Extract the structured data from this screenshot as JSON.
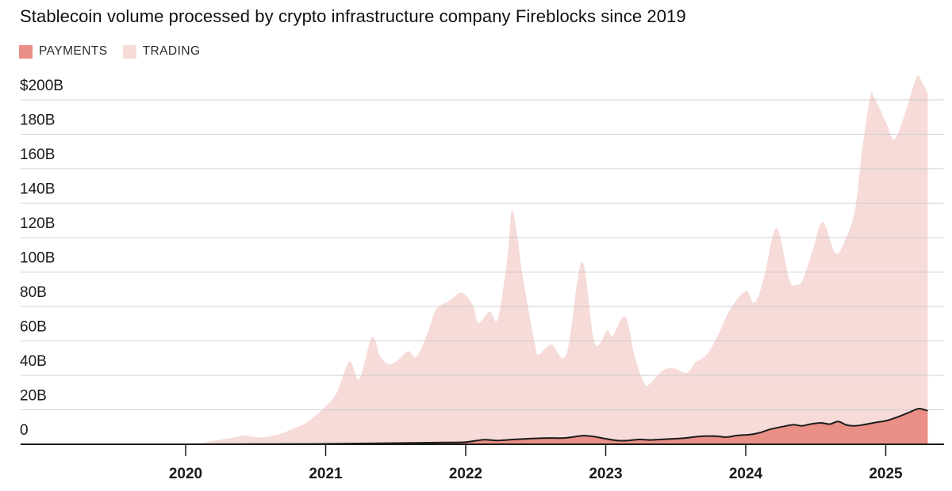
{
  "header": {
    "title": "Stablecoin volume processed by crypto infrastructure company Fireblocks since 2019"
  },
  "legend": {
    "items": [
      {
        "label": "PAYMENTS",
        "color": "#ea8f86"
      },
      {
        "label": "TRADING",
        "color": "#f6dbd9"
      }
    ]
  },
  "colors": {
    "background": "#ffffff",
    "trading_fill": "#f6dbd9",
    "payments_fill": "#ea8f86",
    "payments_line": "#1c1c1c",
    "gridline": "#c9c9c9",
    "axis": "#1a1a1a",
    "text": "#1a1a1a"
  },
  "chart_data": {
    "type": "area",
    "title": "Stablecoin volume processed by crypto infrastructure company Fireblocks since 2019",
    "unit": "billions USD",
    "xlabel": "",
    "ylabel": "",
    "ylim": [
      0,
      200
    ],
    "grid": true,
    "legend_position": "top-left",
    "x_ticks": [
      2020,
      2021,
      2022,
      2023,
      2024,
      2025
    ],
    "x_tick_labels": [
      "2020",
      "2021",
      "2022",
      "2023",
      "2024",
      "2025"
    ],
    "y_ticks": [
      0,
      20,
      40,
      60,
      80,
      100,
      120,
      140,
      160,
      180,
      200
    ],
    "y_tick_labels": [
      "0",
      "20B",
      "40B",
      "60B",
      "80B",
      "100B",
      "120B",
      "140B",
      "160B",
      "180B",
      "$200B"
    ],
    "series": [
      {
        "name": "TRADING",
        "points": [
          [
            2019.0,
            0
          ],
          [
            2019.52,
            0.2
          ],
          [
            2020.0,
            0.5
          ],
          [
            2020.12,
            1
          ],
          [
            2020.2,
            2
          ],
          [
            2020.29,
            3.2
          ],
          [
            2020.37,
            4.4
          ],
          [
            2020.43,
            5.1
          ],
          [
            2020.52,
            3.9
          ],
          [
            2020.6,
            4.6
          ],
          [
            2020.69,
            6.4
          ],
          [
            2020.77,
            9.2
          ],
          [
            2020.86,
            12.4
          ],
          [
            2020.94,
            17.5
          ],
          [
            2021.0,
            22
          ],
          [
            2021.08,
            30
          ],
          [
            2021.17,
            48
          ],
          [
            2021.24,
            38
          ],
          [
            2021.33,
            62
          ],
          [
            2021.39,
            51
          ],
          [
            2021.45,
            46.5
          ],
          [
            2021.51,
            48.5
          ],
          [
            2021.59,
            54
          ],
          [
            2021.65,
            51
          ],
          [
            2021.73,
            65
          ],
          [
            2021.79,
            78.5
          ],
          [
            2021.88,
            83
          ],
          [
            2021.97,
            88
          ],
          [
            2022.05,
            81
          ],
          [
            2022.09,
            70.5
          ],
          [
            2022.17,
            77
          ],
          [
            2022.23,
            73
          ],
          [
            2022.3,
            110
          ],
          [
            2022.33,
            136
          ],
          [
            2022.37,
            120
          ],
          [
            2022.41,
            96
          ],
          [
            2022.49,
            60
          ],
          [
            2022.52,
            52
          ],
          [
            2022.61,
            58
          ],
          [
            2022.72,
            52.5
          ],
          [
            2022.83,
            106
          ],
          [
            2022.92,
            59
          ],
          [
            2023.01,
            66
          ],
          [
            2023.05,
            63
          ],
          [
            2023.14,
            74
          ],
          [
            2023.21,
            50
          ],
          [
            2023.28,
            35
          ],
          [
            2023.32,
            35.5
          ],
          [
            2023.41,
            43
          ],
          [
            2023.49,
            44
          ],
          [
            2023.58,
            41.5
          ],
          [
            2023.64,
            47.5
          ],
          [
            2023.72,
            52
          ],
          [
            2023.8,
            63
          ],
          [
            2023.89,
            78.5
          ],
          [
            2024.0,
            89
          ],
          [
            2024.05,
            82.5
          ],
          [
            2024.09,
            86
          ],
          [
            2024.14,
            100
          ],
          [
            2024.22,
            125.5
          ],
          [
            2024.31,
            96
          ],
          [
            2024.36,
            92.5
          ],
          [
            2024.41,
            96
          ],
          [
            2024.48,
            113
          ],
          [
            2024.55,
            129
          ],
          [
            2024.64,
            111
          ],
          [
            2024.71,
            118.5
          ],
          [
            2024.78,
            136
          ],
          [
            2024.83,
            170
          ],
          [
            2024.89,
            202
          ],
          [
            2024.92,
            201
          ],
          [
            2025.0,
            187
          ],
          [
            2025.06,
            177
          ],
          [
            2025.13,
            190
          ],
          [
            2025.22,
            213
          ],
          [
            2025.26,
            210
          ],
          [
            2025.3,
            204
          ]
        ]
      },
      {
        "name": "PAYMENTS",
        "points": [
          [
            2020.0,
            0
          ],
          [
            2020.6,
            0.1
          ],
          [
            2020.94,
            0.2
          ],
          [
            2021.17,
            0.4
          ],
          [
            2021.51,
            0.7
          ],
          [
            2021.85,
            1.0
          ],
          [
            2022.0,
            1.3
          ],
          [
            2022.13,
            2.6
          ],
          [
            2022.23,
            2.2
          ],
          [
            2022.36,
            2.9
          ],
          [
            2022.55,
            3.6
          ],
          [
            2022.71,
            3.7
          ],
          [
            2022.84,
            5.0
          ],
          [
            2022.92,
            4.4
          ],
          [
            2022.98,
            3.5
          ],
          [
            2023.08,
            2.2
          ],
          [
            2023.15,
            2.1
          ],
          [
            2023.24,
            2.8
          ],
          [
            2023.32,
            2.5
          ],
          [
            2023.43,
            3.0
          ],
          [
            2023.55,
            3.5
          ],
          [
            2023.66,
            4.5
          ],
          [
            2023.77,
            4.8
          ],
          [
            2023.86,
            4.2
          ],
          [
            2023.94,
            5.1
          ],
          [
            2024.03,
            5.6
          ],
          [
            2024.1,
            6.7
          ],
          [
            2024.17,
            8.6
          ],
          [
            2024.26,
            10.2
          ],
          [
            2024.34,
            11.3
          ],
          [
            2024.4,
            10.7
          ],
          [
            2024.46,
            11.7
          ],
          [
            2024.54,
            12.4
          ],
          [
            2024.6,
            11.7
          ],
          [
            2024.66,
            13.2
          ],
          [
            2024.72,
            11.2
          ],
          [
            2024.78,
            10.7
          ],
          [
            2024.85,
            11.5
          ],
          [
            2024.93,
            12.7
          ],
          [
            2025.01,
            13.8
          ],
          [
            2025.09,
            16.0
          ],
          [
            2025.17,
            18.6
          ],
          [
            2025.23,
            20.6
          ],
          [
            2025.27,
            20.2
          ],
          [
            2025.3,
            19.4
          ]
        ]
      }
    ]
  }
}
